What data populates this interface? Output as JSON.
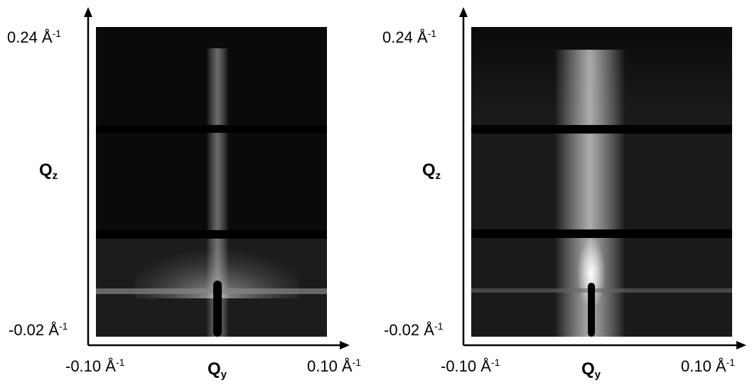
{
  "panels": [
    {
      "y_label": {
        "text": "Q",
        "sub": "z"
      },
      "y_top": {
        "text": "0.24 Å",
        "sup": "-1"
      },
      "y_bottom": {
        "text": "-0.02 Å",
        "sup": "-1"
      },
      "x_label": {
        "text": "Q",
        "sub": "y"
      },
      "x_left": {
        "text": "-0.10 Å",
        "sup": "-1"
      },
      "x_right": {
        "text": "0.10 Å",
        "sup": "-1"
      }
    },
    {
      "y_label": {
        "text": "Q",
        "sub": "z"
      },
      "y_top": {
        "text": "0.24 Å",
        "sup": "-1"
      },
      "y_bottom": {
        "text": "-0.02 Å",
        "sup": "-1"
      },
      "x_label": {
        "text": "Q",
        "sub": "y"
      },
      "x_left": {
        "text": "-0.10 Å",
        "sup": "-1"
      },
      "x_right": {
        "text": "0.10 Å",
        "sup": "-1"
      }
    }
  ]
}
